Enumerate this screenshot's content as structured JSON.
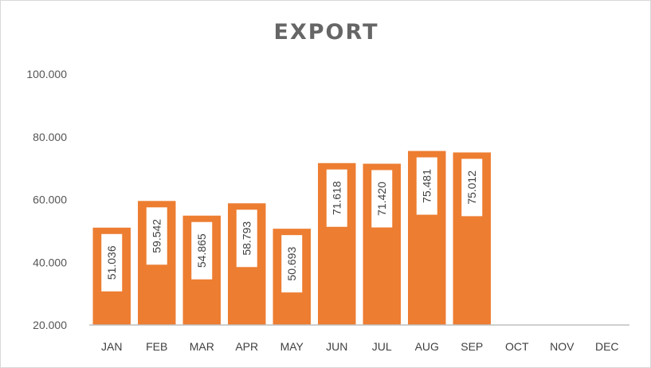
{
  "chart_data": {
    "type": "bar",
    "title": "EXPORT",
    "xlabel": "",
    "ylabel": "",
    "ylim": [
      20000,
      100000
    ],
    "yticks": [
      20000,
      40000,
      60000,
      80000,
      100000
    ],
    "ytick_labels": [
      "20.000",
      "40.000",
      "60.000",
      "80.000",
      "100.000"
    ],
    "categories": [
      "JAN",
      "FEB",
      "MAR",
      "APR",
      "MAY",
      "JUN",
      "JUL",
      "AUG",
      "SEP",
      "OCT",
      "NOV",
      "DEC"
    ],
    "values": [
      51036,
      59542,
      54865,
      58793,
      50693,
      71618,
      71420,
      75481,
      75012,
      null,
      null,
      null
    ],
    "data_labels": [
      "51.036",
      "59.542",
      "54.865",
      "58.793",
      "50.693",
      "71.618",
      "71.420",
      "75.481",
      "75.012",
      "",
      "",
      ""
    ],
    "grid": false,
    "legend": "none",
    "bar_color": "#ED7D31",
    "label_box_color": "#FFFFFF"
  }
}
